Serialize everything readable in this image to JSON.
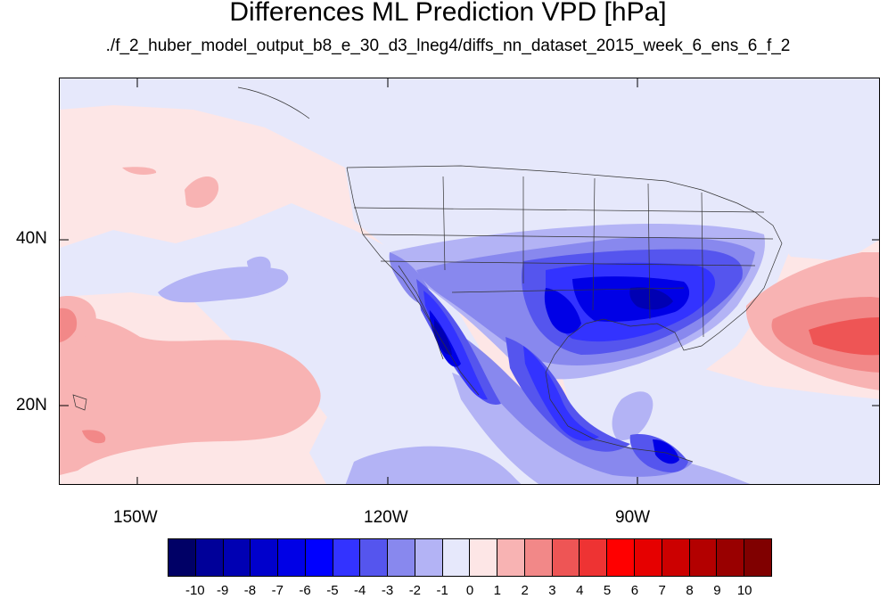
{
  "title": "Differences ML Prediction VPD [hPa]",
  "subtitle": "./f_2_huber_model_output_b8_e_30_d3_lneg4/diffs_nn_dataset_2015_week_6_ens_6_f_2",
  "map": {
    "lon_ticks": [
      "150W",
      "120W",
      "90W"
    ],
    "lat_ticks": [
      "40N",
      "20N"
    ],
    "ocean_base_color": "#fde6e6",
    "land_base_color": "#e6e8fb"
  },
  "colorbar": {
    "labels": [
      "-10",
      "-9",
      "-8",
      "-7",
      "-6",
      "-5",
      "-4",
      "-3",
      "-2",
      "-1",
      "0",
      "1",
      "2",
      "3",
      "4",
      "5",
      "6",
      "7",
      "8",
      "9",
      "10"
    ],
    "colors": [
      "#000066",
      "#000099",
      "#0000b3",
      "#0000cc",
      "#0000e6",
      "#0000ff",
      "#3333ff",
      "#5555ee",
      "#8888ee",
      "#b3b3f5",
      "#e6e8fb",
      "#fde6e6",
      "#f8b3b3",
      "#f28888",
      "#ee5555",
      "#ee3333",
      "#ff0000",
      "#e60000",
      "#cc0000",
      "#b30000",
      "#990000",
      "#800000"
    ]
  }
}
